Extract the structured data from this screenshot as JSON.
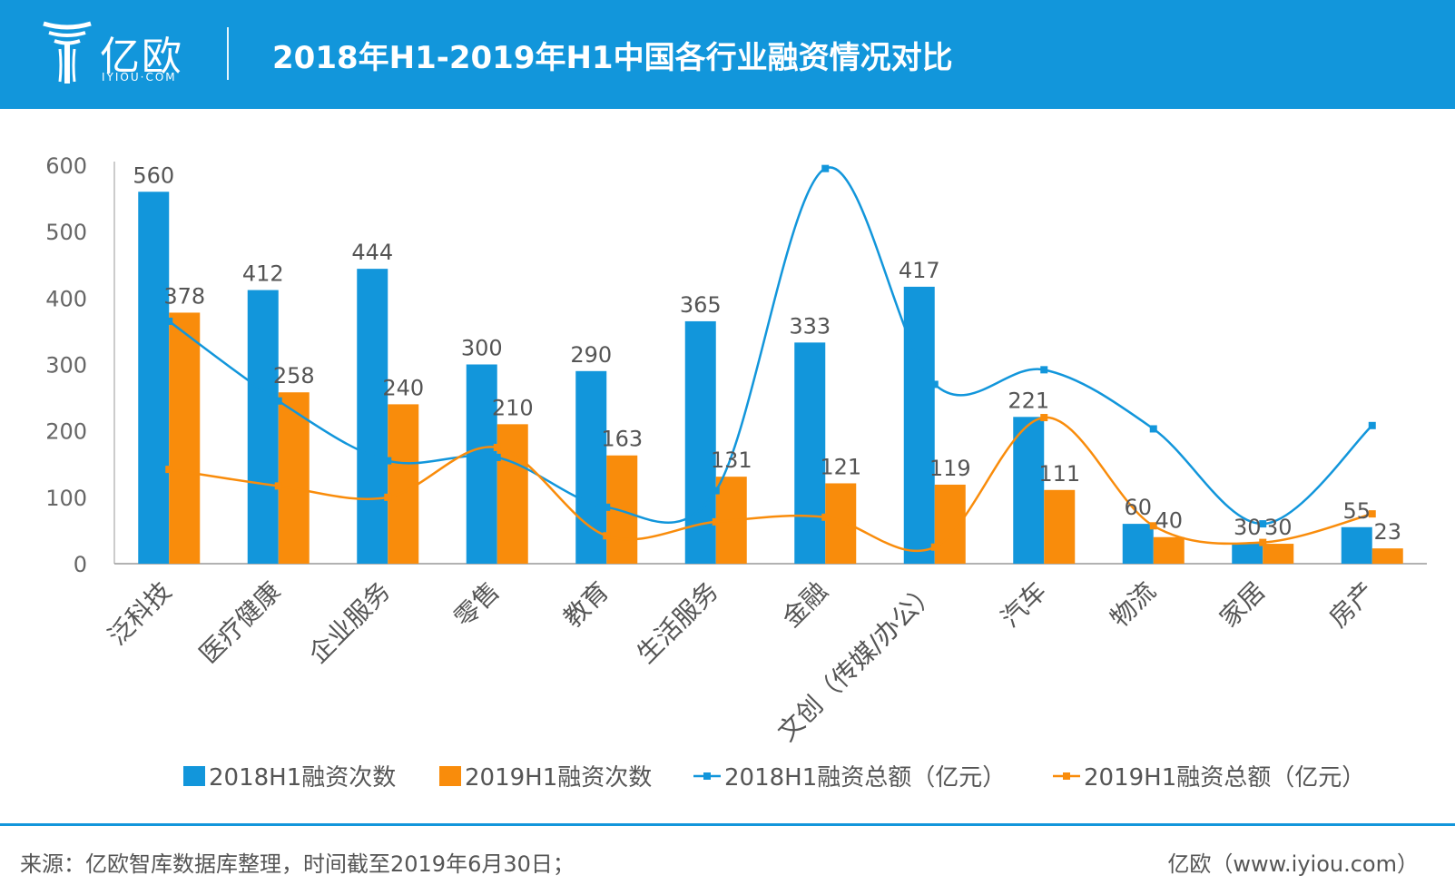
{
  "header": {
    "logo_text": "亿欧",
    "logo_sub": "IYIOU·COM",
    "title": "2018年H1-2019年H1中国各行业融资情况对比"
  },
  "footer": {
    "source": "来源：亿欧智库数据库整理，时间截至2019年6月30日；",
    "site": "亿欧（www.iyiou.com）"
  },
  "colors": {
    "blue": "#1296db",
    "orange": "#f98c0b",
    "header": "#1296db"
  },
  "chart_data": {
    "type": "bar",
    "categories": [
      "泛科技",
      "医疗健康",
      "企业服务",
      "零售",
      "教育",
      "生活服务",
      "金融",
      "文创（传媒/办公）",
      "汽车",
      "物流",
      "家居",
      "房产"
    ],
    "series": [
      {
        "name": "2018H1融资次数",
        "type": "bar",
        "color": "#1296db",
        "values": [
          560,
          412,
          444,
          300,
          290,
          365,
          333,
          417,
          221,
          60,
          30,
          55
        ]
      },
      {
        "name": "2019H1融资次数",
        "type": "bar",
        "color": "#f98c0b",
        "values": [
          378,
          258,
          240,
          210,
          163,
          131,
          121,
          119,
          111,
          40,
          30,
          23
        ]
      },
      {
        "name": "2018H1融资总额（亿元）",
        "type": "line",
        "color": "#1296db",
        "values": [
          365,
          245,
          155,
          160,
          85,
          110,
          595,
          270,
          292,
          203,
          60,
          208
        ]
      },
      {
        "name": "2019H1融资总额（亿元）",
        "type": "line",
        "color": "#f98c0b",
        "values": [
          142,
          117,
          100,
          175,
          42,
          63,
          70,
          25,
          220,
          57,
          32,
          75
        ]
      }
    ],
    "ylim": [
      0,
      600
    ],
    "yticks": [
      0,
      100,
      200,
      300,
      400,
      500,
      600
    ],
    "grid": false,
    "legend": "bottom"
  }
}
